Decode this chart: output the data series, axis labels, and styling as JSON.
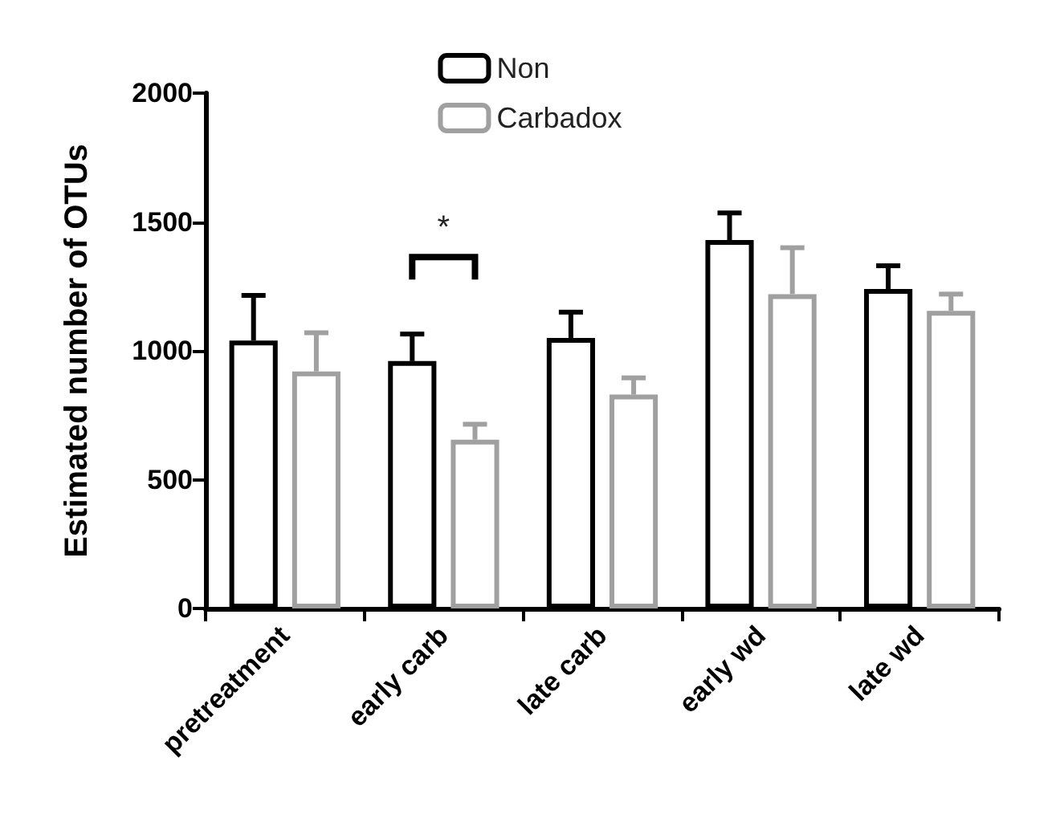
{
  "chart_data": {
    "type": "bar",
    "ylabel": "Estimated number of OTUs",
    "categories": [
      "pretreatment",
      "early carb",
      "late carb",
      "early wd",
      "late wd"
    ],
    "series": [
      {
        "name": "Non",
        "color": "#000000",
        "values": [
          1040,
          960,
          1050,
          1430,
          1240
        ],
        "errors": [
          [
            1040,
            1215
          ],
          [
            960,
            1065
          ],
          [
            1050,
            1150
          ],
          [
            1430,
            1535
          ],
          [
            1240,
            1330
          ]
        ]
      },
      {
        "name": "Carbadox",
        "color": "#a0a0a0",
        "values": [
          920,
          655,
          830,
          1220,
          1155
        ],
        "errors": [
          [
            920,
            1070
          ],
          [
            655,
            715
          ],
          [
            830,
            895
          ],
          [
            1220,
            1400
          ],
          [
            1155,
            1220
          ]
        ]
      }
    ],
    "ylim": [
      0,
      2000
    ],
    "yticks": [
      0,
      500,
      1000,
      1500,
      2000
    ],
    "grid": false,
    "legend": "top",
    "annotations": [
      "*"
    ]
  }
}
